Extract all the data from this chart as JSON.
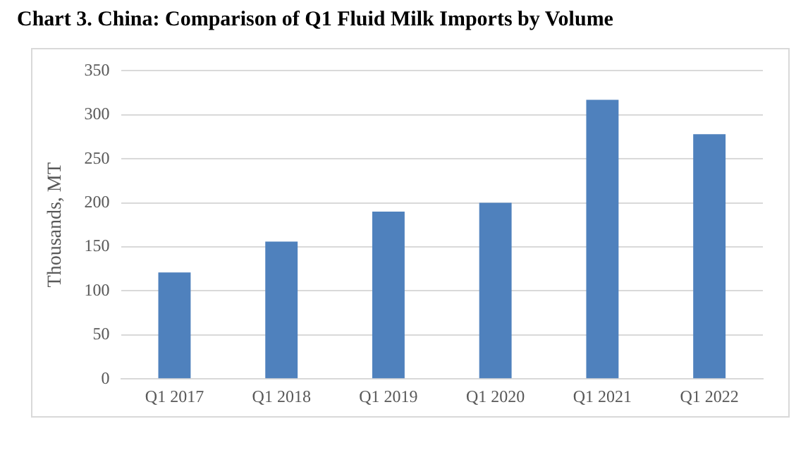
{
  "chart_data": {
    "type": "bar",
    "title": "Chart 3. China: Comparison of Q1 Fluid Milk Imports by Volume",
    "ylabel": "Thousands, MT",
    "categories": [
      "Q1 2017",
      "Q1 2018",
      "Q1 2019",
      "Q1 2020",
      "Q1 2021",
      "Q1 2022"
    ],
    "values": [
      121,
      156,
      190,
      200,
      317,
      278
    ],
    "color": "#4f81bd",
    "ylim": [
      0,
      350
    ],
    "yticks": [
      0,
      50,
      100,
      150,
      200,
      250,
      300,
      350
    ],
    "grid": "y"
  }
}
